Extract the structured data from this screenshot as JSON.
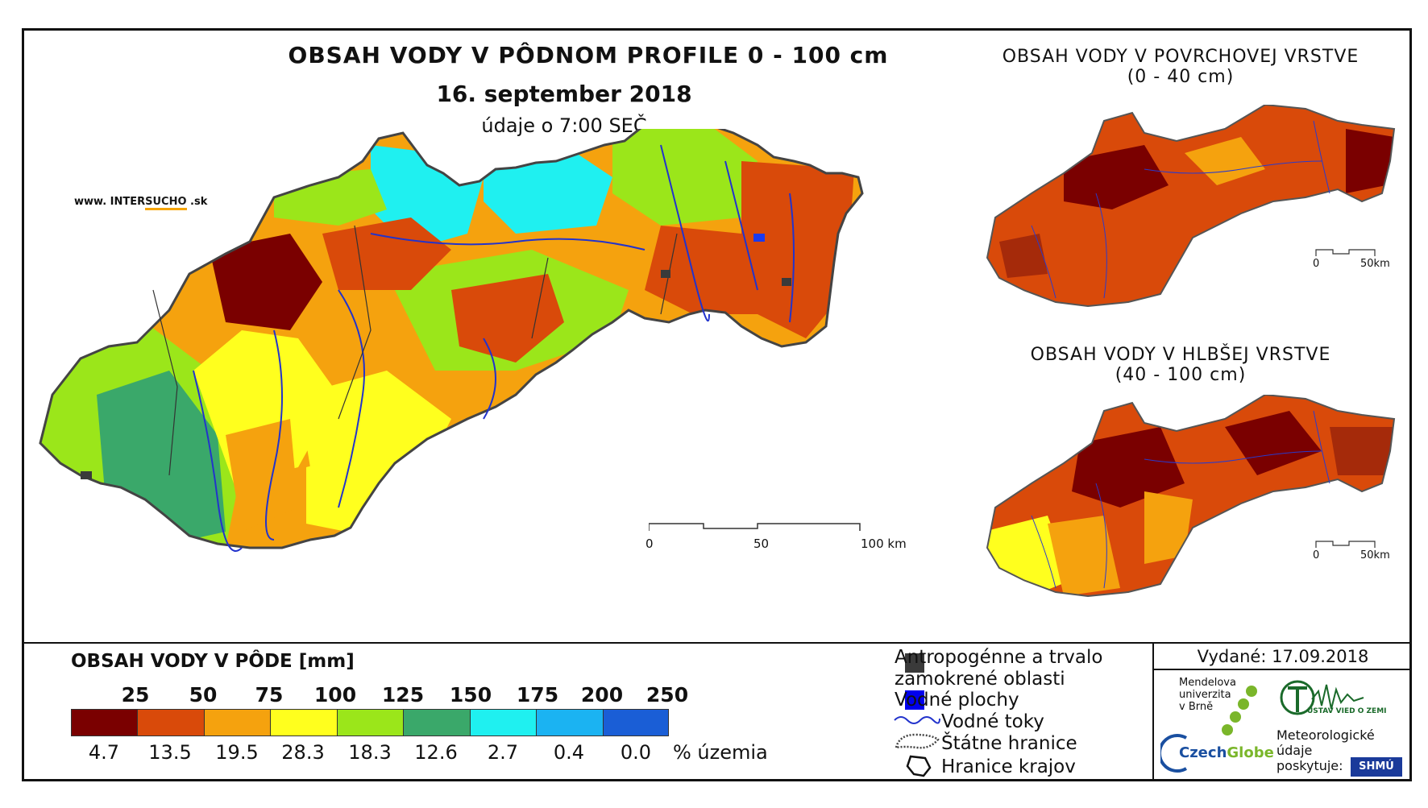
{
  "header": {
    "title": "OBSAH VODY V PÔDNOM PROFILE 0 - 100 cm",
    "date": "16. september 2018",
    "time_note": "údaje o 7:00 SEČ",
    "url_prefix": "www. INTER",
    "url_highlight": "SUCHO",
    "url_suffix": " .sk"
  },
  "side_maps": {
    "top_title_line1": "OBSAH VODY V POVRCHOVEJ VRSTVE",
    "top_title_line2": "(0 - 40 cm)",
    "bottom_title_line1": "OBSAH VODY V HLBŠEJ VRSTVE",
    "bottom_title_line2": "(40 - 100 cm)",
    "scale_start": "0",
    "scale_end": "50km"
  },
  "main_scale": {
    "start": "0",
    "mid": "50",
    "end": "100 km"
  },
  "legend": {
    "title": "OBSAH VODY V PÔDE [mm]",
    "thresholds": [
      "25",
      "50",
      "75",
      "100",
      "125",
      "150",
      "175",
      "200",
      "250"
    ],
    "classes": [
      {
        "color": "#7a0000",
        "percent": "4.7"
      },
      {
        "color": "#d94a0a",
        "percent": "13.5"
      },
      {
        "color": "#f5a20e",
        "percent": "19.5"
      },
      {
        "color": "#ffff1e",
        "percent": "28.3"
      },
      {
        "color": "#9be61a",
        "percent": "18.3"
      },
      {
        "color": "#3aa86a",
        "percent": "12.6"
      },
      {
        "color": "#1ff0f0",
        "percent": "2.7"
      },
      {
        "color": "#1bb3f2",
        "percent": "0.4"
      },
      {
        "color": "#1a5ed6",
        "percent": "0.0"
      }
    ],
    "percent_label": "% územia"
  },
  "symbols": {
    "anthropogenic_line1": "Antropogénne a trvalo",
    "anthropogenic_line2": "zamokrené oblasti",
    "water_bodies": "Vodné plochy",
    "rivers": "Vodné toky",
    "state_border": "Štátne hranice",
    "region_border": "Hranice krajov"
  },
  "credits": {
    "issued": "Vydané: 17.09.2018",
    "mendelu_line1": "Mendelova",
    "mendelu_line2": "univerzita",
    "mendelu_line3": "v Brně",
    "czechglobe_a": "Czech",
    "czechglobe_b": "Globe",
    "uvz": "ÚSTAV VIED O ZEMI",
    "meteo_line1": "Meteorologické",
    "meteo_line2": "údaje",
    "meteo_line3": "poskytuje:",
    "shmu": "SHMÚ"
  },
  "colors": {
    "dark_red": "#7a0000",
    "red_orange": "#d94a0a",
    "orange": "#f5a20e",
    "yellow": "#ffff1e",
    "light_green": "#9be61a",
    "green": "#3aa86a",
    "cyan": "#1ff0f0",
    "light_blue": "#1bb3f2",
    "blue": "#1a5ed6",
    "river": "#2233cc",
    "anthropogenic": "#3a3a3a"
  }
}
